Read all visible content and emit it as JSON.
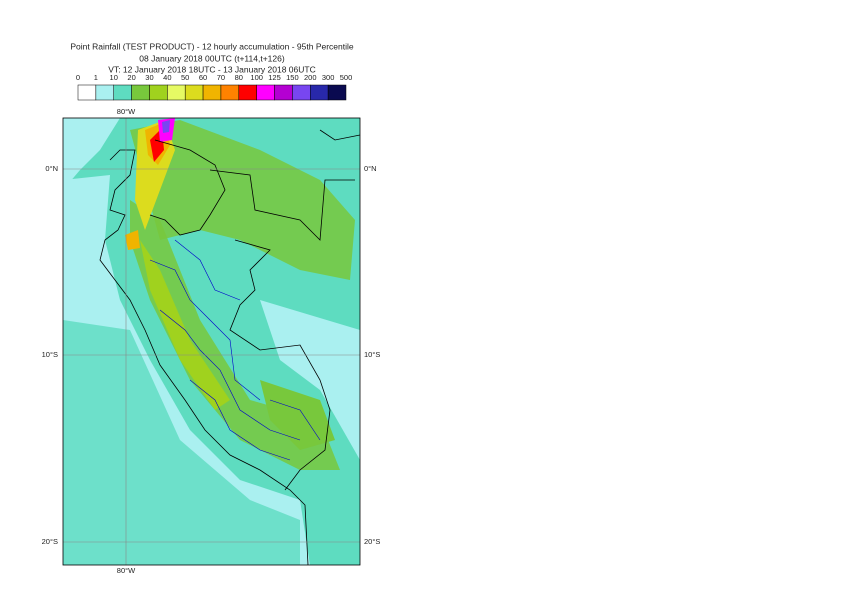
{
  "header": {
    "lines": [
      "Point Rainfall (TEST PRODUCT) - 12 hourly accumulation - 95th Percentile",
      "08 January 2018 00UTC (t+114,t+126)",
      "VT: 12 January 2018 18UTC - 13 January 2018 06UTC"
    ]
  },
  "legend": {
    "ticks": [
      "0",
      "1",
      "10",
      "20",
      "30",
      "40",
      "50",
      "60",
      "70",
      "80",
      "100",
      "125",
      "150",
      "200",
      "300",
      "500"
    ],
    "colors": [
      "#ffffff",
      "#aaf0f0",
      "#5edcc0",
      "#78c83c",
      "#a0d21e",
      "#e6fa64",
      "#dcdc1e",
      "#f0b400",
      "#ff8200",
      "#ff0000",
      "#ff00ff",
      "#b400d2",
      "#7846f0",
      "#2828aa",
      "#0a0a50"
    ]
  },
  "map": {
    "lon_labels": [
      "80°W"
    ],
    "lat_labels": [
      "0°N",
      "10°S",
      "20°S"
    ]
  }
}
